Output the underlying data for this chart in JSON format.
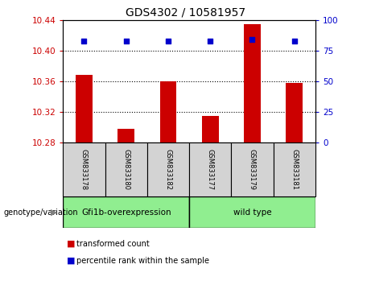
{
  "title": "GDS4302 / 10581957",
  "samples": [
    "GSM833178",
    "GSM833180",
    "GSM833182",
    "GSM833177",
    "GSM833179",
    "GSM833181"
  ],
  "bar_values": [
    10.368,
    10.298,
    10.36,
    10.315,
    10.435,
    10.358
  ],
  "percentile_values": [
    83,
    83,
    83,
    83,
    84,
    83
  ],
  "bar_bottom": 10.28,
  "ylim_left": [
    10.28,
    10.44
  ],
  "ylim_right": [
    0,
    100
  ],
  "yticks_left": [
    10.28,
    10.32,
    10.36,
    10.4,
    10.44
  ],
  "yticks_right": [
    0,
    25,
    50,
    75,
    100
  ],
  "bar_color": "#cc0000",
  "percentile_color": "#0000cc",
  "group1_label": "Gfi1b-overexpression",
  "group2_label": "wild type",
  "group1_color": "#90ee90",
  "group2_color": "#90ee90",
  "group_label_prefix": "genotype/variation",
  "tick_label_color_left": "#cc0000",
  "tick_label_color_right": "#0000cc",
  "legend_bar_label": "transformed count",
  "legend_pct_label": "percentile rank within the sample",
  "background_color": "#ffffff",
  "sample_bg_color": "#d3d3d3",
  "grid_ticks": [
    10.32,
    10.36,
    10.4
  ],
  "bar_width": 0.4
}
